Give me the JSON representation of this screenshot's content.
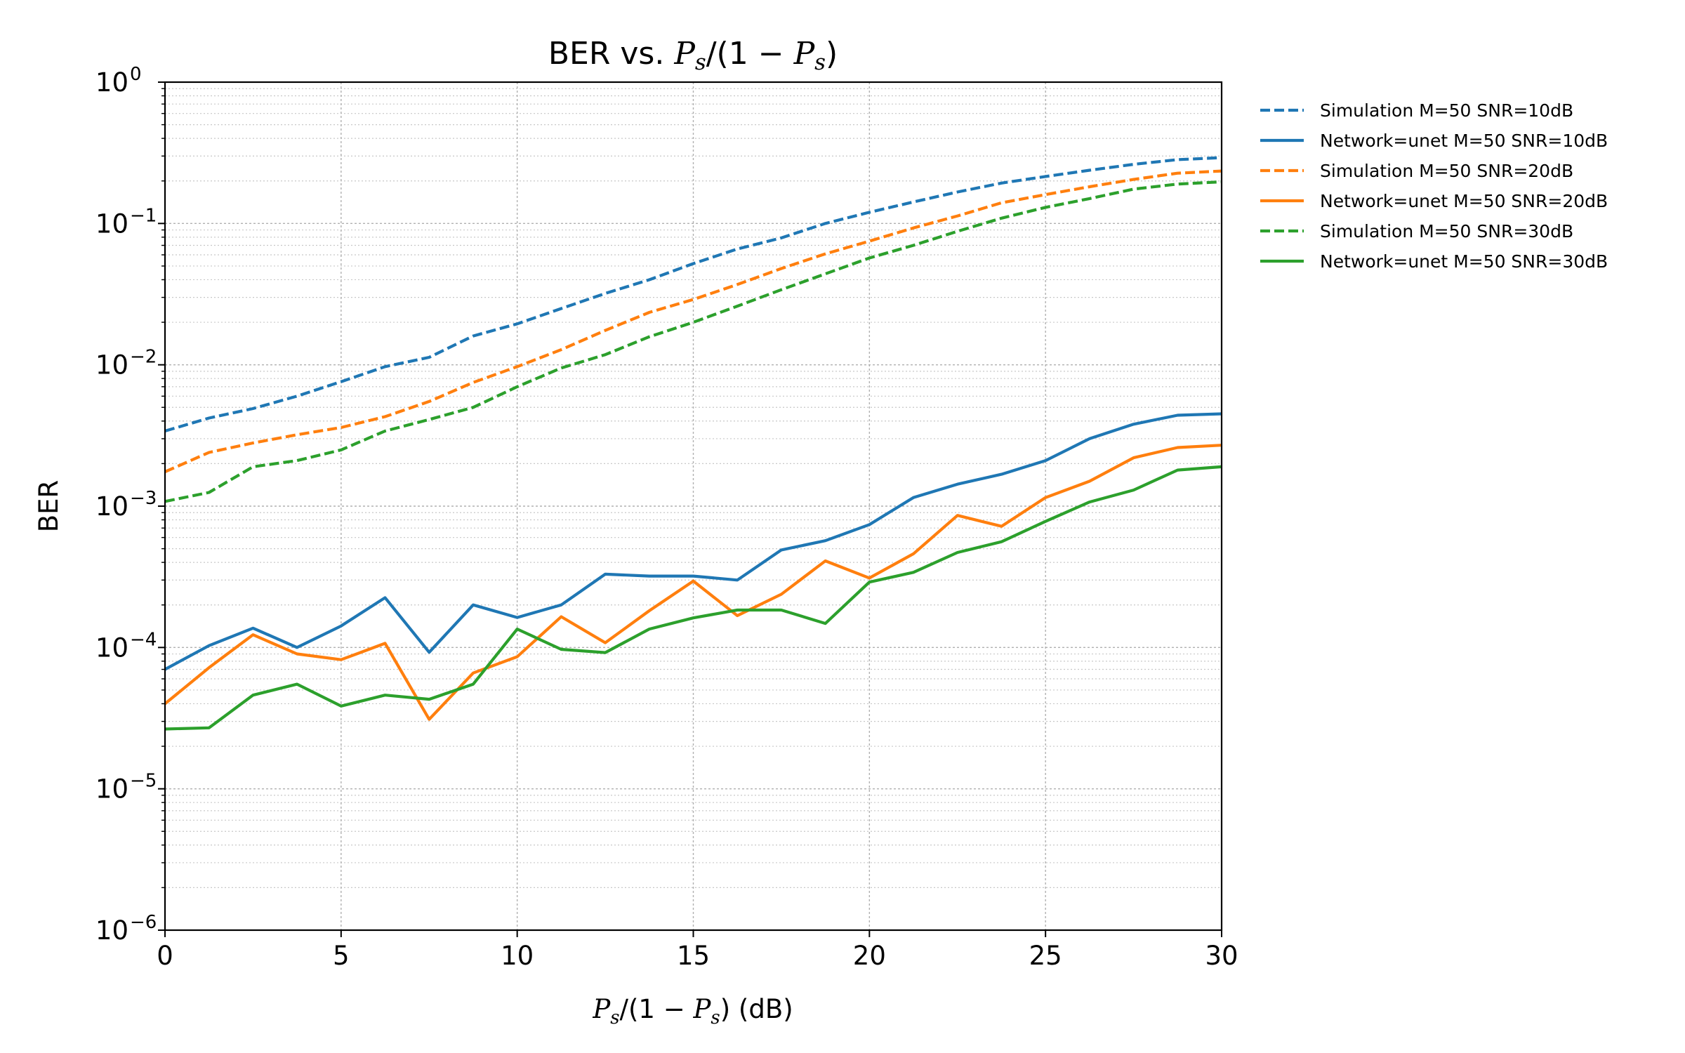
{
  "chart_data": {
    "type": "line",
    "title_prefix": "BER vs. ",
    "title_math": [
      "P",
      "s",
      "/(1 − ",
      "P",
      "s",
      ")"
    ],
    "xlabel_math": [
      "P",
      "s",
      "/(1 − ",
      "P",
      "s",
      ")"
    ],
    "xlabel_suffix": " (dB)",
    "ylabel": "BER",
    "x_scale": "linear",
    "y_scale": "log",
    "xlim": [
      0,
      30
    ],
    "ylim": [
      1e-06,
      1
    ],
    "x_ticks": [
      "0",
      "5",
      "10",
      "15",
      "20",
      "25",
      "30"
    ],
    "y_ticks": [
      {
        "base": "10",
        "exp": "0"
      },
      {
        "base": "10",
        "exp": "−1"
      },
      {
        "base": "10",
        "exp": "−2"
      },
      {
        "base": "10",
        "exp": "−3"
      },
      {
        "base": "10",
        "exp": "−4"
      },
      {
        "base": "10",
        "exp": "−5"
      },
      {
        "base": "10",
        "exp": "−6"
      }
    ],
    "grid": true,
    "legend_position": "outside-right-top",
    "x": [
      0,
      1.25,
      2.5,
      3.75,
      5,
      6.25,
      7.5,
      8.75,
      10,
      11.25,
      12.5,
      13.75,
      15,
      16.25,
      17.5,
      18.75,
      20,
      21.25,
      22.5,
      23.75,
      25,
      26.25,
      27.5,
      28.75,
      30
    ],
    "series": [
      {
        "name": "Simulation M=50 SNR=10dB",
        "color": "#1f77b4",
        "style": "dashed",
        "values": [
          0.0034,
          0.0042,
          0.0049,
          0.006,
          0.0076,
          0.0097,
          0.0113,
          0.016,
          0.0195,
          0.025,
          0.032,
          0.04,
          0.052,
          0.066,
          0.079,
          0.1,
          0.12,
          0.142,
          0.167,
          0.193,
          0.215,
          0.238,
          0.262,
          0.283,
          0.292
        ]
      },
      {
        "name": "Network=unet M=50 SNR=10dB",
        "color": "#1f77b4",
        "style": "solid",
        "values": [
          7e-05,
          0.000103,
          0.000137,
          0.0001,
          0.000142,
          0.000225,
          9.25e-05,
          0.0002,
          0.000163,
          0.0002,
          0.00033,
          0.00032,
          0.00032,
          0.0003,
          0.00049,
          0.00057,
          0.00074,
          0.00115,
          0.00143,
          0.00168,
          0.0021,
          0.003,
          0.0038,
          0.0044,
          0.0045
        ]
      },
      {
        "name": "Simulation M=50 SNR=20dB",
        "color": "#ff7f0e",
        "style": "dashed",
        "values": [
          0.00175,
          0.0024,
          0.0028,
          0.0032,
          0.0036,
          0.0043,
          0.0055,
          0.0075,
          0.0097,
          0.0128,
          0.0175,
          0.0235,
          0.029,
          0.037,
          0.048,
          0.061,
          0.075,
          0.093,
          0.113,
          0.14,
          0.16,
          0.182,
          0.205,
          0.227,
          0.235
        ]
      },
      {
        "name": "Network=unet M=50 SNR=20dB",
        "color": "#ff7f0e",
        "style": "solid",
        "values": [
          4e-05,
          7.2e-05,
          0.000123,
          9e-05,
          8.2e-05,
          0.000107,
          3.1e-05,
          6.6e-05,
          8.6e-05,
          0.000165,
          0.000108,
          0.000182,
          0.000295,
          0.000168,
          0.000238,
          0.00041,
          0.00031,
          0.00046,
          0.00086,
          0.00072,
          0.00115,
          0.0015,
          0.0022,
          0.0026,
          0.0027
        ]
      },
      {
        "name": "Simulation M=50 SNR=30dB",
        "color": "#2ca02c",
        "style": "dashed",
        "values": [
          0.00108,
          0.00125,
          0.0019,
          0.0021,
          0.0025,
          0.0034,
          0.0041,
          0.005,
          0.007,
          0.0095,
          0.0118,
          0.0158,
          0.02,
          0.026,
          0.034,
          0.044,
          0.057,
          0.07,
          0.088,
          0.109,
          0.13,
          0.15,
          0.175,
          0.19,
          0.197
        ]
      },
      {
        "name": "Network=unet M=50 SNR=30dB",
        "color": "#2ca02c",
        "style": "solid",
        "values": [
          2.65e-05,
          2.7e-05,
          4.6e-05,
          5.5e-05,
          3.85e-05,
          4.6e-05,
          4.3e-05,
          5.5e-05,
          0.000135,
          9.7e-05,
          9.2e-05,
          0.000135,
          0.000162,
          0.000184,
          0.000184,
          0.000148,
          0.00029,
          0.00034,
          0.00047,
          0.00056,
          0.00078,
          0.00107,
          0.0013,
          0.0018,
          0.0019
        ]
      }
    ]
  }
}
